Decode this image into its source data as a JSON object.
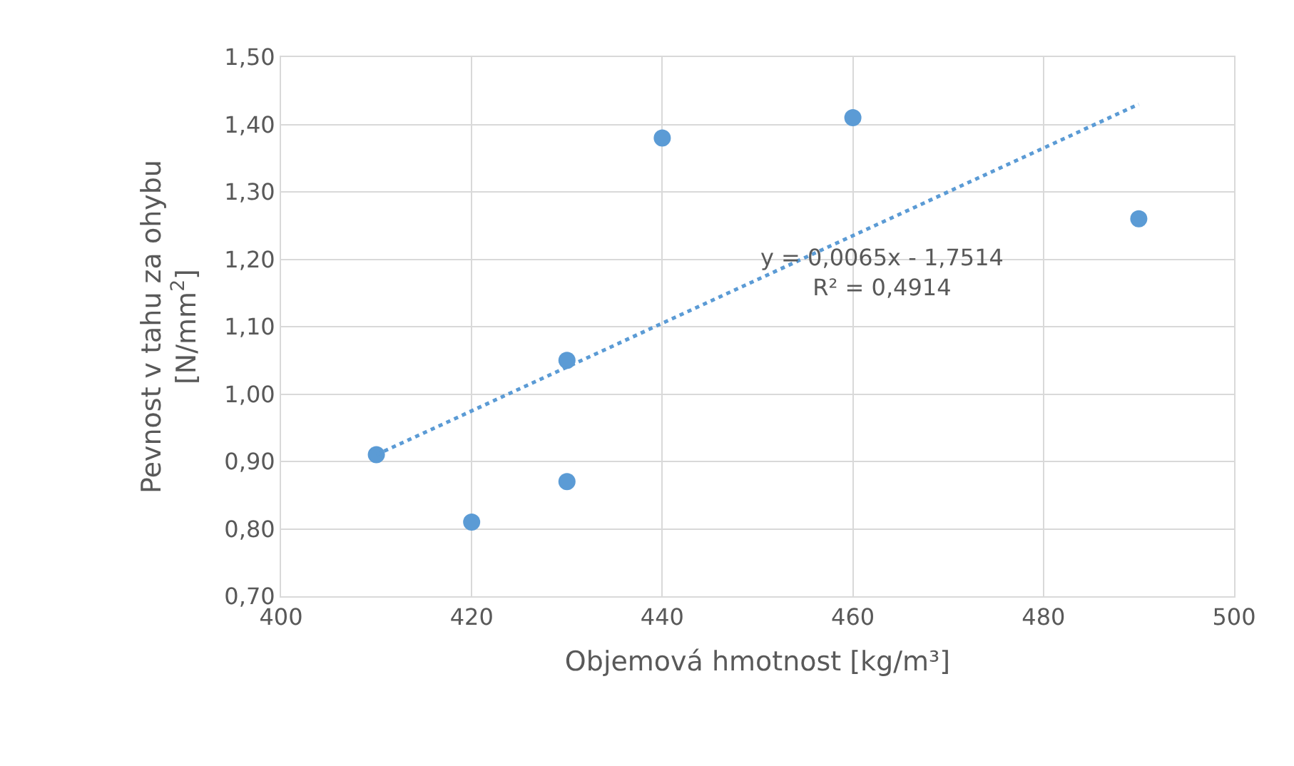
{
  "chart_data": {
    "type": "scatter",
    "xlabel": "Objemová hmotnost [kg/m³]",
    "ylabel": "Pevnost v tahu za ohybu\n[N/mm$^{2}$]",
    "x": [
      410,
      420,
      430,
      430,
      440,
      460,
      490
    ],
    "series": [
      {
        "color": "#5b9bd5",
        "marker": "circle",
        "values": [
          0.91,
          0.81,
          0.87,
          1.05,
          1.38,
          1.41,
          1.26
        ]
      },
      {
        "type": "line",
        "color": "#5b9bd5",
        "line_style": "dotted",
        "marker": "none",
        "x": [
          410,
          490
        ],
        "values": [
          0.91,
          1.43
        ]
      }
    ],
    "annotations": [
      "y = 0,0065x - 1,7514\nR² = 0,4914"
    ],
    "xlim": [
      400,
      500
    ],
    "xticks": [
      400,
      420,
      440,
      460,
      480,
      500
    ],
    "ylim": [
      0.7,
      1.5
    ],
    "yticks": [
      {
        "value": 0.7,
        "label": "0,70"
      },
      {
        "value": 0.8,
        "label": "0,80"
      },
      {
        "value": 0.9,
        "label": "0,90"
      },
      {
        "value": 1.0,
        "label": "1,00"
      },
      {
        "value": 1.1,
        "label": "1,10"
      },
      {
        "value": 1.2,
        "label": "1,20"
      },
      {
        "value": 1.3,
        "label": "1,30"
      },
      {
        "value": 1.4,
        "label": "1,40"
      },
      {
        "value": 1.5,
        "label": "1,50"
      }
    ],
    "grid": true
  }
}
